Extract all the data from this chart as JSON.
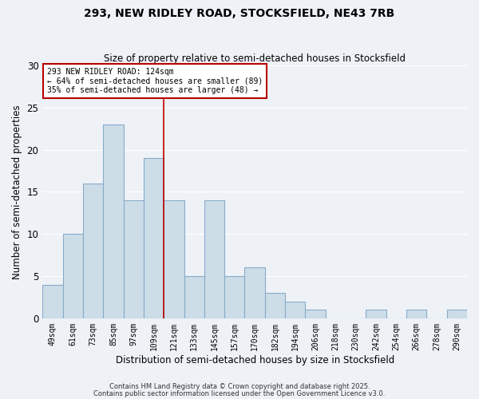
{
  "title1": "293, NEW RIDLEY ROAD, STOCKSFIELD, NE43 7RB",
  "title2": "Size of property relative to semi-detached houses in Stocksfield",
  "xlabel": "Distribution of semi-detached houses by size in Stocksfield",
  "ylabel": "Number of semi-detached properties",
  "categories": [
    "49sqm",
    "61sqm",
    "73sqm",
    "85sqm",
    "97sqm",
    "109sqm",
    "121sqm",
    "133sqm",
    "145sqm",
    "157sqm",
    "170sqm",
    "182sqm",
    "194sqm",
    "206sqm",
    "218sqm",
    "230sqm",
    "242sqm",
    "254sqm",
    "266sqm",
    "278sqm",
    "290sqm"
  ],
  "values": [
    4,
    10,
    16,
    23,
    14,
    19,
    14,
    5,
    14,
    5,
    6,
    3,
    2,
    1,
    0,
    0,
    1,
    0,
    1,
    0,
    1
  ],
  "bar_color": "#ccdde8",
  "bar_edge_color": "#88aac8",
  "vline_x_index": 6,
  "box_text_line1": "293 NEW RIDLEY ROAD: 124sqm",
  "box_text_line2": "← 64% of semi-detached houses are smaller (89)",
  "box_text_line3": "35% of semi-detached houses are larger (48) →",
  "box_color": "#ffffff",
  "box_edge_color": "#bb0000",
  "vline_color": "#bb0000",
  "ylim": [
    0,
    30
  ],
  "yticks": [
    0,
    5,
    10,
    15,
    20,
    25,
    30
  ],
  "background_color": "#eef2f7",
  "grid_color": "#ffffff",
  "footer1": "Contains HM Land Registry data © Crown copyright and database right 2025.",
  "footer2": "Contains public sector information licensed under the Open Government Licence v3.0."
}
